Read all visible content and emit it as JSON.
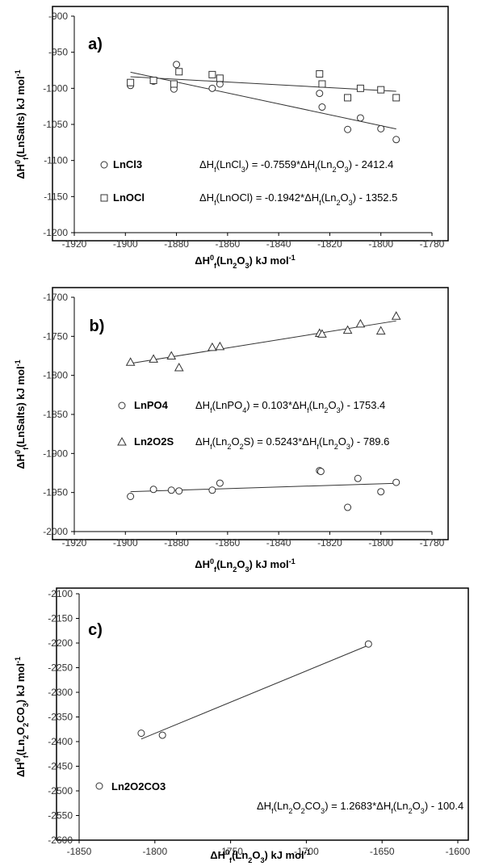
{
  "chart_data": [
    {
      "type": "scatter",
      "panel_label": "a)",
      "xlabel_parts": [
        "ΔH",
        "0",
        "f",
        "(Ln",
        "2",
        "O",
        "3",
        ") kJ mol",
        "-1"
      ],
      "ylabel_parts": [
        "ΔH",
        "0",
        "f",
        "(LnSalts) kJ mol",
        "-1"
      ],
      "xlim": [
        -1920,
        -1780
      ],
      "ylim": [
        -1200,
        -900
      ],
      "x_ticks": [
        -1920,
        -1900,
        -1880,
        -1860,
        -1840,
        -1820,
        -1800,
        -1780
      ],
      "y_ticks": [
        -900,
        -950,
        -1000,
        -1050,
        -1100,
        -1150,
        -1200
      ],
      "x_tick_labels": [
        "-1920",
        "-1900",
        "-1880",
        "-1860",
        "-1840",
        "-1820",
        "-1800",
        "-1780"
      ],
      "y_tick_labels": [
        "-900",
        "-950",
        "-1000",
        "-1050",
        "-1100",
        "-1150",
        "-1200"
      ],
      "series": [
        {
          "name": "LnCl3",
          "marker": "circle",
          "equation_parts": [
            "ΔH",
            "f",
            "(LnCl",
            "3",
            ") = -0.7559*ΔH",
            "f",
            "(Ln",
            "2",
            "O",
            "3",
            ")  - 2412.4"
          ],
          "x": [
            -1898,
            -1889,
            -1881,
            -1880,
            -1866,
            -1863,
            -1824,
            -1823,
            -1813,
            -1808,
            -1800,
            -1794
          ],
          "y": [
            -996,
            -990,
            -1001,
            -967,
            -1000,
            -994,
            -1007,
            -1026,
            -1057,
            -1041,
            -1056,
            -1071
          ],
          "trendline": {
            "slope": -0.7559,
            "intercept": -2412.4,
            "x_range": [
              -1898,
              -1794
            ]
          }
        },
        {
          "name": "LnOCl",
          "marker": "square",
          "equation_parts": [
            "ΔH",
            "f",
            "(LnOCl)  = -0.1942*ΔH",
            "f",
            "(Ln",
            "2",
            "O",
            "3",
            ")  - 1352.5"
          ],
          "x": [
            -1898,
            -1889,
            -1881,
            -1879,
            -1866,
            -1863,
            -1824,
            -1823,
            -1813,
            -1808,
            -1800,
            -1794
          ],
          "y": [
            -992,
            -989,
            -994,
            -977,
            -981,
            -986,
            -980,
            -994,
            -1013,
            -1000,
            -1002,
            -1013
          ],
          "trendline": {
            "slope": -0.1942,
            "intercept": -1352.5,
            "x_range": [
              -1898,
              -1794
            ]
          }
        }
      ]
    },
    {
      "type": "scatter",
      "panel_label": "b)",
      "xlabel_parts": [
        "ΔH",
        "0",
        "f",
        "(Ln",
        "2",
        "O",
        "3",
        ") kJ mol",
        "-1"
      ],
      "ylabel_parts": [
        "ΔH",
        "0",
        "f",
        "(LnSalts) kJ mol",
        "-1"
      ],
      "xlim": [
        -1920,
        -1780
      ],
      "ylim": [
        -2000,
        -1700
      ],
      "x_ticks": [
        -1920,
        -1900,
        -1880,
        -1860,
        -1840,
        -1820,
        -1800,
        -1780
      ],
      "y_ticks": [
        -1700,
        -1750,
        -1800,
        -1850,
        -1900,
        -1950,
        -2000
      ],
      "x_tick_labels": [
        "-1920",
        "-1900",
        "-1880",
        "-1860",
        "-1840",
        "-1820",
        "-1800",
        "-1780"
      ],
      "y_tick_labels": [
        "-1700",
        "-1750",
        "-1800",
        "-1850",
        "-1900",
        "-1950",
        "-2000"
      ],
      "series": [
        {
          "name": "LnPO4",
          "marker": "circle",
          "equation_parts": [
            "ΔH",
            "f",
            "(LnPO",
            "4",
            ")    = 0.103*ΔH",
            "f",
            "(Ln",
            "2",
            "O",
            "3",
            ")  - 1753.4"
          ],
          "x": [
            -1898,
            -1889,
            -1882,
            -1879,
            -1866,
            -1863,
            -1824,
            -1823.5,
            -1813,
            -1809,
            -1800,
            -1794
          ],
          "y": [
            -1955,
            -1946,
            -1947,
            -1948,
            -1947,
            -1938,
            -1922,
            -1923,
            -1969,
            -1932,
            -1949,
            -1937
          ],
          "trendline": {
            "slope": 0.103,
            "intercept": -1753.4,
            "x_range": [
              -1898,
              -1794
            ]
          }
        },
        {
          "name": "Ln2O2S",
          "marker": "triangle",
          "equation_parts": [
            "ΔH",
            "f",
            "(Ln",
            "2",
            "O",
            "2",
            "S)  = 0.5243*ΔH",
            "f",
            "(Ln",
            "2",
            "O",
            "3",
            ")  - 789.6"
          ],
          "x": [
            -1898,
            -1889,
            -1882,
            -1879,
            -1866,
            -1863,
            -1824,
            -1823,
            -1813,
            -1808,
            -1800,
            -1794
          ],
          "y": [
            -1783,
            -1779,
            -1775,
            -1790,
            -1764,
            -1763,
            -1746,
            -1747,
            -1742,
            -1734,
            -1743,
            -1724
          ],
          "trendline": {
            "slope": 0.5243,
            "intercept": -789.6,
            "x_range": [
              -1898,
              -1794
            ]
          }
        }
      ]
    },
    {
      "type": "scatter",
      "panel_label": "c)",
      "xlabel_parts": [
        "ΔH",
        "0",
        "f",
        "(Ln",
        "2",
        "O",
        "3",
        ") kJ mol",
        "-1"
      ],
      "ylabel_parts": [
        "ΔH",
        "0",
        "f",
        "(Ln",
        "2",
        "O",
        "2",
        "CO",
        "3",
        ") kJ mol",
        "-1"
      ],
      "xlim": [
        -1850,
        -1600
      ],
      "ylim": [
        -2600,
        -2100
      ],
      "x_ticks": [
        -1850,
        -1800,
        -1750,
        -1700,
        -1650,
        -1600
      ],
      "y_ticks": [
        -2100,
        -2150,
        -2200,
        -2250,
        -2300,
        -2350,
        -2400,
        -2450,
        -2500,
        -2550,
        -2600
      ],
      "x_tick_labels": [
        "-1850",
        "-1800",
        "-1750",
        "-1700",
        "-1650",
        "-1600"
      ],
      "y_tick_labels": [
        "-2100",
        "-2150",
        "-2200",
        "-2250",
        "-2300",
        "-2350",
        "-2400",
        "-2450",
        "-2500",
        "-2550",
        "-2600"
      ],
      "series": [
        {
          "name": "Ln2O2CO3",
          "marker": "circle",
          "equation_parts": [
            "ΔH",
            "f",
            "(Ln",
            "2",
            "O",
            "2",
            "CO",
            "3",
            ")    = 1.2683*ΔH",
            "f",
            "(Ln",
            "2",
            "O",
            "3",
            ")  - 100.4"
          ],
          "x": [
            -1809,
            -1795,
            -1659
          ],
          "y": [
            -2383,
            -2387,
            -2202
          ],
          "trendline": {
            "slope": 1.2683,
            "intercept": -100.4,
            "x_range": [
              -1809,
              -1659
            ]
          }
        }
      ]
    }
  ]
}
